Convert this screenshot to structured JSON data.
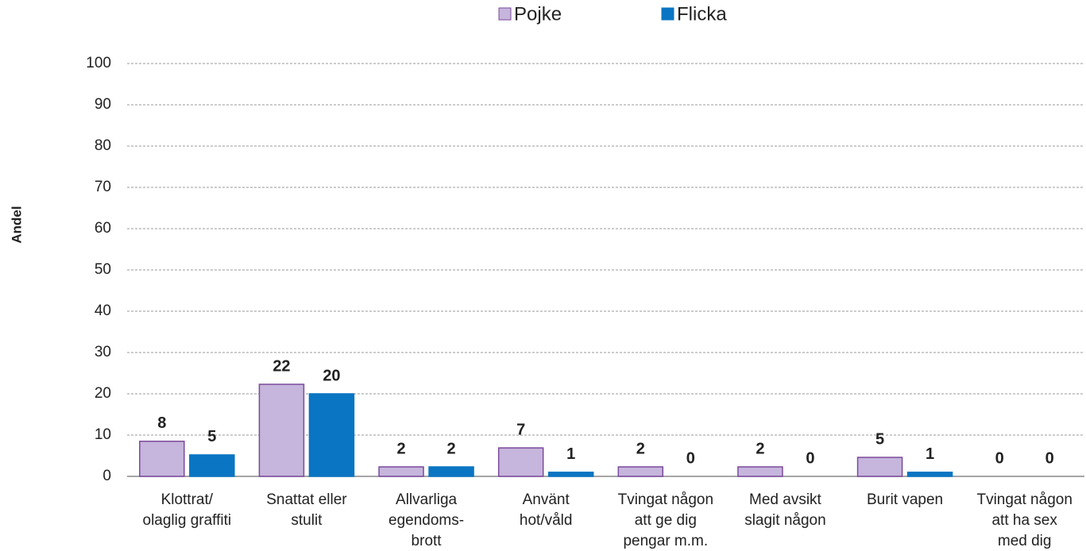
{
  "chart_data": {
    "type": "bar",
    "y_label": "Andel",
    "categories": [
      "Klottrat/\nolaglig graffiti",
      "Snattat eller\nstulit",
      "Allvarliga\negendoms-\nbrott",
      "Använt\nhot/våld",
      "Tvingat någon\natt ge dig\npengar m.m.",
      "Med avsikt\nslagit någon",
      "Burit vapen",
      "Tvingat någon\natt ha sex\nmed dig"
    ],
    "series": [
      {
        "name": "Pojke",
        "color": "#c6b5dc",
        "stroke": "#7b4a9c",
        "values": [
          8.5,
          22.3,
          2.3,
          6.9,
          2.3,
          2.3,
          4.6,
          0
        ],
        "value_labels": [
          "8",
          "22",
          "2",
          "7",
          "2",
          "2",
          "5",
          "0"
        ]
      },
      {
        "name": "Flicka",
        "color": "#0a75c2",
        "stroke": "#0a75c2",
        "values": [
          5.2,
          20,
          2.3,
          1,
          0,
          0,
          1,
          0
        ],
        "value_labels": [
          "5",
          "20",
          "2",
          "1",
          "0",
          "0",
          "1",
          "0"
        ]
      }
    ],
    "ylim": [
      0,
      100
    ],
    "yticks": [
      0,
      10,
      20,
      30,
      40,
      50,
      60,
      70,
      80,
      90,
      100
    ],
    "grid": true,
    "legend": "top"
  }
}
